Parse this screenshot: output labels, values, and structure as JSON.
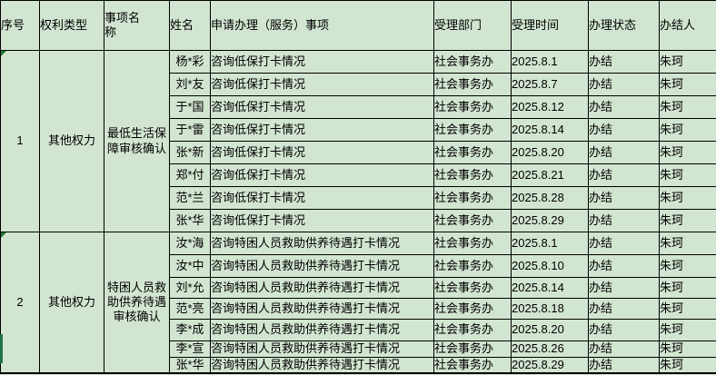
{
  "colors": {
    "background": "#d2e5d0",
    "date_column_background": "#e0ebdc",
    "grid_border": "#000000",
    "cell_flag_green": "#1e7b34",
    "selection_bar_green": "#217346"
  },
  "table": {
    "columns": [
      {
        "label": "序号"
      },
      {
        "label": "权利类型"
      },
      {
        "label": "事项名称"
      },
      {
        "label": "姓名"
      },
      {
        "label": "申请办理（服务）事项"
      },
      {
        "label": "受理部门"
      },
      {
        "label": "受理时间"
      },
      {
        "label": "办理状态"
      },
      {
        "label": "办结人"
      }
    ],
    "groups": [
      {
        "serial": "1",
        "right_type": "其他权力",
        "item_name": "最低生活保障审核确认",
        "has_corner_flag": true,
        "rows": [
          {
            "name": "杨*彩",
            "service": "咨询低保打卡情况",
            "department": "社会事务办",
            "date": "2025.8.1",
            "status": "办结",
            "closer": "朱珂"
          },
          {
            "name": "刘*友",
            "service": "咨询低保打卡情况",
            "department": "社会事务办",
            "date": "2025.8.7",
            "status": "办结",
            "closer": "朱珂"
          },
          {
            "name": "于*国",
            "service": "咨询低保打卡情况",
            "department": "社会事务办",
            "date": "2025.8.12",
            "status": "办结",
            "closer": "朱珂"
          },
          {
            "name": "于*雷",
            "service": "咨询低保打卡情况",
            "department": "社会事务办",
            "date": "2025.8.14",
            "status": "办结",
            "closer": "朱珂"
          },
          {
            "name": "张*新",
            "service": "咨询低保打卡情况",
            "department": "社会事务办",
            "date": "2025.8.20",
            "status": "办结",
            "closer": "朱珂"
          },
          {
            "name": "郑*付",
            "service": "咨询低保打卡情况",
            "department": "社会事务办",
            "date": "2025.8.21",
            "status": "办结",
            "closer": "朱珂"
          },
          {
            "name": "范*兰",
            "service": "咨询低保打卡情况",
            "department": "社会事务办",
            "date": "2025.8.28",
            "status": "办结",
            "closer": "朱珂"
          },
          {
            "name": "张*华",
            "service": "咨询低保打卡情况",
            "department": "社会事务办",
            "date": "2025.8.29",
            "status": "办结",
            "closer": "朱珂"
          }
        ]
      },
      {
        "serial": "2",
        "right_type": "其他权力",
        "item_name": "特困人员救助供养待遇审核确认",
        "has_corner_flag": true,
        "rows": [
          {
            "name": "汝*海",
            "service": "咨询特困人员救助供养待遇打卡情况",
            "department": "社会事务办",
            "date": "2025.8.1",
            "status": "办结",
            "closer": "朱珂"
          },
          {
            "name": "汝*中",
            "service": "咨询特困人员救助供养待遇打卡情况",
            "department": "社会事务办",
            "date": "2025.8.10",
            "status": "办结",
            "closer": "朱珂"
          },
          {
            "name": "刘*允",
            "service": "咨询特困人员救助供养待遇打卡情况",
            "department": "社会事务办",
            "date": "2025.8.14",
            "status": "办结",
            "closer": "朱珂"
          },
          {
            "name": "范*亮",
            "service": "咨询特困人员救助供养待遇打卡情况",
            "department": "社会事务办",
            "date": "2025.8.18",
            "status": "办结",
            "closer": "朱珂"
          },
          {
            "name": "李*成",
            "service": "咨询特困人员救助供养待遇打卡情况",
            "department": "社会事务办",
            "date": "2025.8.20",
            "status": "办结",
            "closer": "朱珂"
          },
          {
            "name": "李*宣",
            "service": "咨询特困人员救助供养待遇打卡情况",
            "department": "社会事务办",
            "date": "2025.8.26",
            "status": "办结",
            "closer": "朱珂"
          },
          {
            "name": "张*华",
            "service": "咨询特困人员救助供养待遇打卡情况",
            "department": "社会事务办",
            "date": "2025.8.29",
            "status": "办结",
            "closer": "朱珂"
          }
        ]
      }
    ]
  }
}
